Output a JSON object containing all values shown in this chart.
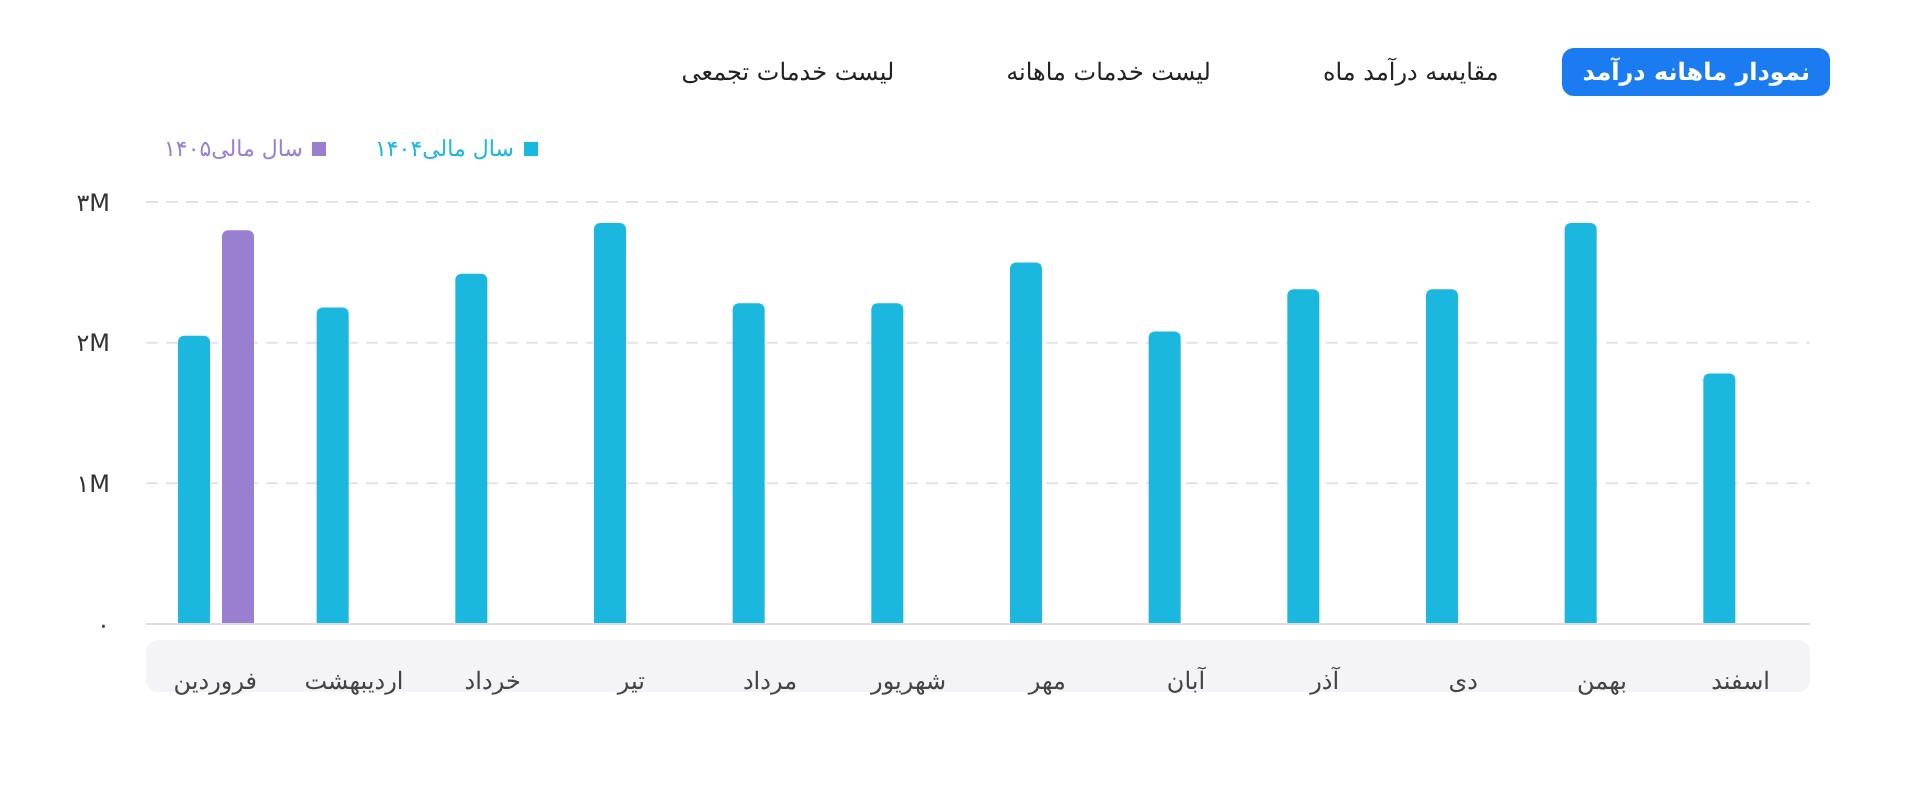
{
  "chart_data": {
    "type": "bar",
    "annotations": [
      "نمودار ماهانه درآمد",
      "مقایسه درآمد ماه",
      "لیست خدمات ماهانه",
      "لیست خدمات تجمعی"
    ],
    "categories": [
      "فروردین",
      "اردیبهشت",
      "خرداد",
      "تیر",
      "مرداد",
      "شهریور",
      "مهر",
      "آبان",
      "آذر",
      "دی",
      "بهمن",
      "اسفند"
    ],
    "series": [
      {
        "name": "سال مالی۱۴۰۴",
        "color": "#1ab7de",
        "values": [
          2.05,
          2.25,
          2.49,
          2.85,
          2.28,
          2.28,
          2.57,
          2.08,
          2.38,
          2.38,
          2.85,
          1.78
        ]
      },
      {
        "name": "سال مالی۱۴۰۵",
        "color": "#9a7fd1",
        "values": [
          2.8,
          null,
          null,
          null,
          null,
          null,
          null,
          null,
          null,
          null,
          null,
          null
        ]
      }
    ],
    "ylim": [
      0,
      3
    ],
    "yticks": [
      {
        "value": 0,
        "label": "۰"
      },
      {
        "value": 1,
        "label": "۱M"
      },
      {
        "value": 2,
        "label": "۲M"
      },
      {
        "value": 3,
        "label": "۳M"
      }
    ],
    "grid": "y",
    "legend": "top left"
  }
}
